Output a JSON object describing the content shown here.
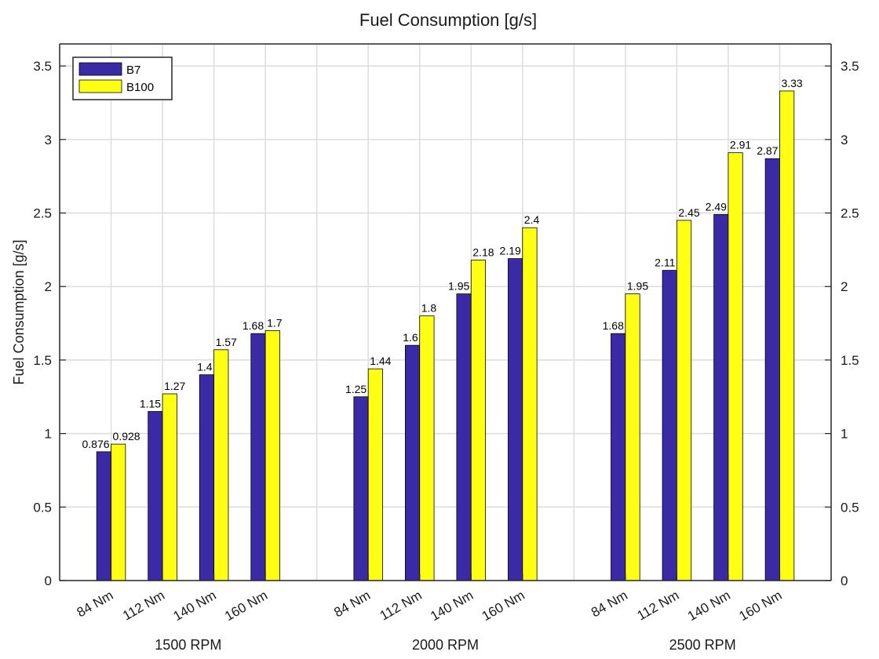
{
  "chart_data": {
    "type": "bar",
    "title": "Fuel Consumption [g/s]",
    "ylabel": "Fuel Consumption [g/s]",
    "xlabel": "",
    "ylim": [
      0,
      3.65
    ],
    "yticks": [
      0,
      0.5,
      1,
      1.5,
      2,
      2.5,
      3,
      3.5
    ],
    "ytick_labels": [
      "0",
      "0.5",
      "1",
      "1.5",
      "2",
      "2.5",
      "3",
      "3.5"
    ],
    "grid": true,
    "legend_position": "top-left",
    "groups": [
      "1500 RPM",
      "2000 RPM",
      "2500 RPM"
    ],
    "categories": [
      "84 Nm",
      "112 Nm",
      "140 Nm",
      "160 Nm"
    ],
    "series": [
      {
        "name": "B7",
        "color": "#3a2aa6",
        "values": [
          [
            0.876,
            1.15,
            1.4,
            1.68
          ],
          [
            1.25,
            1.6,
            1.95,
            2.19
          ],
          [
            1.68,
            2.11,
            2.49,
            2.87
          ]
        ],
        "labels": [
          [
            "0.876",
            "1.15",
            "1.4",
            "1.68"
          ],
          [
            "1.25",
            "1.6",
            "1.95",
            "2.19"
          ],
          [
            "1.68",
            "2.11",
            "2.49",
            "2.87"
          ]
        ]
      },
      {
        "name": "B100",
        "color": "#ffff14",
        "values": [
          [
            0.928,
            1.27,
            1.57,
            1.7
          ],
          [
            1.44,
            1.8,
            2.18,
            2.4
          ],
          [
            1.95,
            2.45,
            2.91,
            3.33
          ]
        ],
        "labels": [
          [
            "0.928",
            "1.27",
            "1.57",
            "1.7"
          ],
          [
            "1.44",
            "1.8",
            "2.18",
            "2.4"
          ],
          [
            "1.95",
            "2.45",
            "2.91",
            "3.33"
          ]
        ]
      }
    ]
  }
}
